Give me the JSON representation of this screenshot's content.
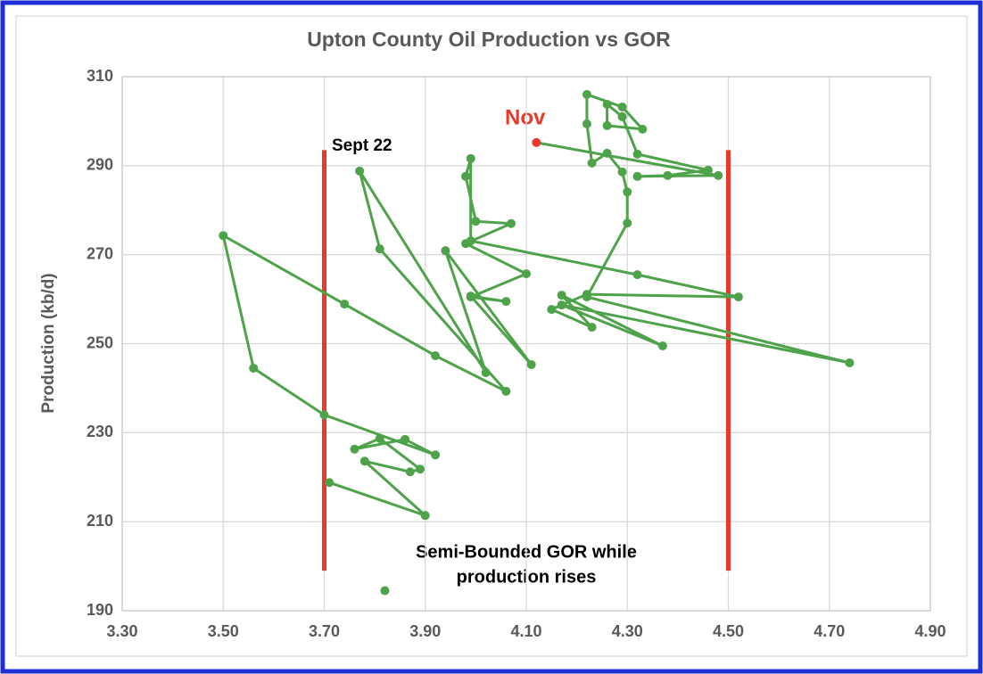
{
  "chart_data": {
    "type": "line",
    "title": "Upton County Oil Production vs GOR",
    "y_label": "Production (kb/d)",
    "xlim": [
      3.3,
      4.9
    ],
    "xticks": [
      {
        "value": 3.3,
        "label": "3.30"
      },
      {
        "value": 3.5,
        "label": "3.50"
      },
      {
        "value": 3.7,
        "label": "3.70"
      },
      {
        "value": 3.9,
        "label": "3.90"
      },
      {
        "value": 4.1,
        "label": "4.10"
      },
      {
        "value": 4.3,
        "label": "4.30"
      },
      {
        "value": 4.5,
        "label": "4.50"
      },
      {
        "value": 4.7,
        "label": "4.70"
      },
      {
        "value": 4.9,
        "label": "4.90"
      }
    ],
    "ylim": [
      190,
      310
    ],
    "yticks": [
      190,
      210,
      230,
      250,
      270,
      290,
      310
    ],
    "grid": true,
    "series": [
      {
        "color": "#4ea24a",
        "highlight_last_color": "#e8392a",
        "x": [
          3.82,
          3.5,
          3.71,
          3.9,
          3.78,
          3.87,
          3.89,
          3.81,
          3.76,
          3.86,
          3.92,
          3.7,
          3.56,
          3.5,
          3.74,
          3.92,
          4.06,
          3.81,
          3.77,
          4.02,
          3.94,
          4.11,
          3.99,
          4.06,
          3.99,
          4.1,
          3.98,
          4.07,
          4.0,
          3.98,
          3.99,
          3.99,
          4.32,
          4.52,
          4.22,
          4.15,
          4.23,
          4.17,
          4.37,
          4.17,
          4.74,
          4.22,
          4.3,
          4.3,
          4.29,
          4.26,
          4.23,
          4.22,
          4.22,
          4.29,
          4.33,
          4.26,
          4.26,
          4.29,
          4.32,
          4.46,
          4.38,
          4.32,
          4.48,
          4.12
        ],
        "values": [
          194.5,
          null,
          218.8,
          211.4,
          223.6,
          221.2,
          221.8,
          228.7,
          226.3,
          228.5,
          225.0,
          234.0,
          244.5,
          274.3,
          258.9,
          247.3,
          239.3,
          271.3,
          288.8,
          243.5,
          270.9,
          245.3,
          260.7,
          259.5,
          260.5,
          265.7,
          272.5,
          277.0,
          277.5,
          287.6,
          291.6,
          273.1,
          265.5,
          260.5,
          261.1,
          257.7,
          253.7,
          260.9,
          249.5,
          258.7,
          245.7,
          260.5,
          277.1,
          284.1,
          288.6,
          292.8,
          290.6,
          299.4,
          306.0,
          303.2,
          298.2,
          299.0,
          303.8,
          301.0,
          292.6,
          289.0,
          287.8,
          287.6,
          287.8,
          295.2
        ]
      }
    ],
    "reference_lines": [
      {
        "x": 3.7,
        "y": [
          199,
          293.5
        ],
        "color": "#e8392a"
      },
      {
        "x": 4.5,
        "y": [
          199,
          293.5
        ],
        "color": "#e8392a"
      }
    ],
    "annotations": [
      "Sept 22",
      "Nov",
      "Semi-Bounded GOR while",
      "production rises"
    ]
  }
}
